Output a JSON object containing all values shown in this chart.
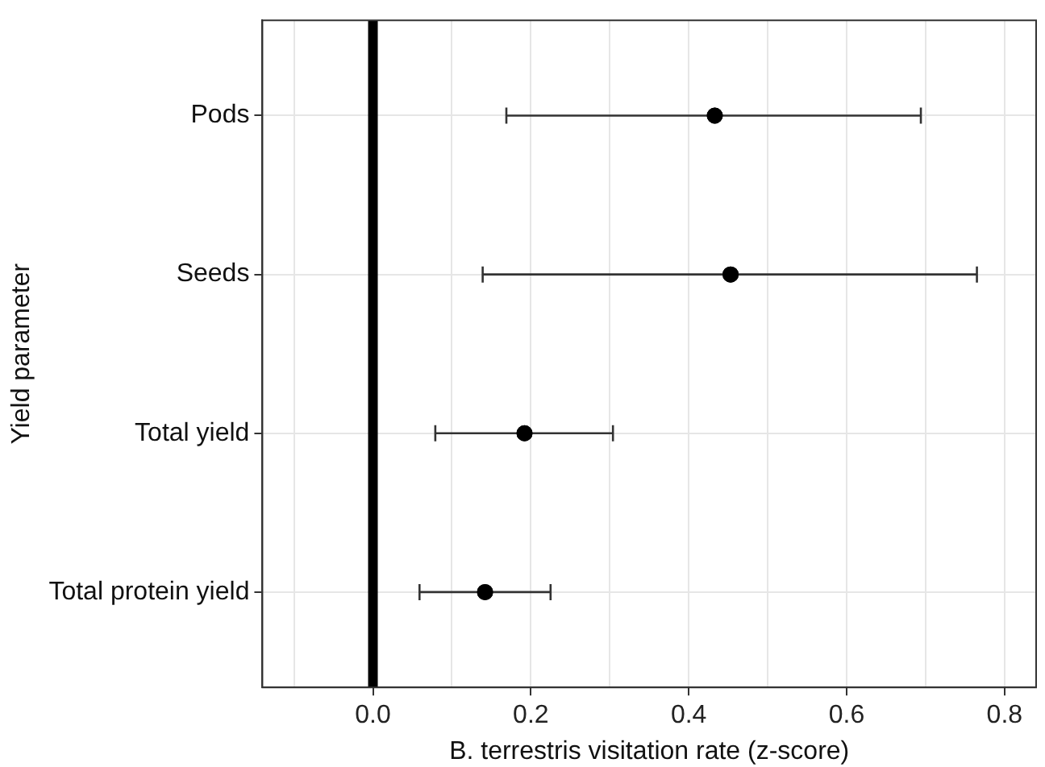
{
  "chart_data": {
    "type": "scatter",
    "orientation": "horizontal",
    "xlabel": "B. terrestris visitation rate (z-score)",
    "ylabel": "Yield parameter",
    "categories": [
      "Pods",
      "Seeds",
      "Total yield",
      "Total protein yield"
    ],
    "values": [
      0.433,
      0.453,
      0.192,
      0.142
    ],
    "errors": [
      [
        0.169,
        0.694
      ],
      [
        0.139,
        0.765
      ],
      [
        0.079,
        0.304
      ],
      [
        0.059,
        0.225
      ]
    ],
    "color": "#000000",
    "marker": "circle",
    "xlim": [
      -0.14,
      0.84
    ],
    "xticks": [
      {
        "value": -0.1,
        "label": null
      },
      {
        "value": 0,
        "label": "0.0"
      },
      {
        "value": 0.1,
        "label": null
      },
      {
        "value": 0.2,
        "label": "0.2"
      },
      {
        "value": 0.3,
        "label": null
      },
      {
        "value": 0.4,
        "label": "0.4"
      },
      {
        "value": 0.5,
        "label": null
      },
      {
        "value": 0.6,
        "label": "0.6"
      },
      {
        "value": 0.7,
        "label": null
      },
      {
        "value": 0.8,
        "label": "0.8"
      }
    ],
    "ref_lines": [
      {
        "axis": "x",
        "value": 0,
        "color": "#000000"
      }
    ],
    "grid": true,
    "legend": false
  }
}
